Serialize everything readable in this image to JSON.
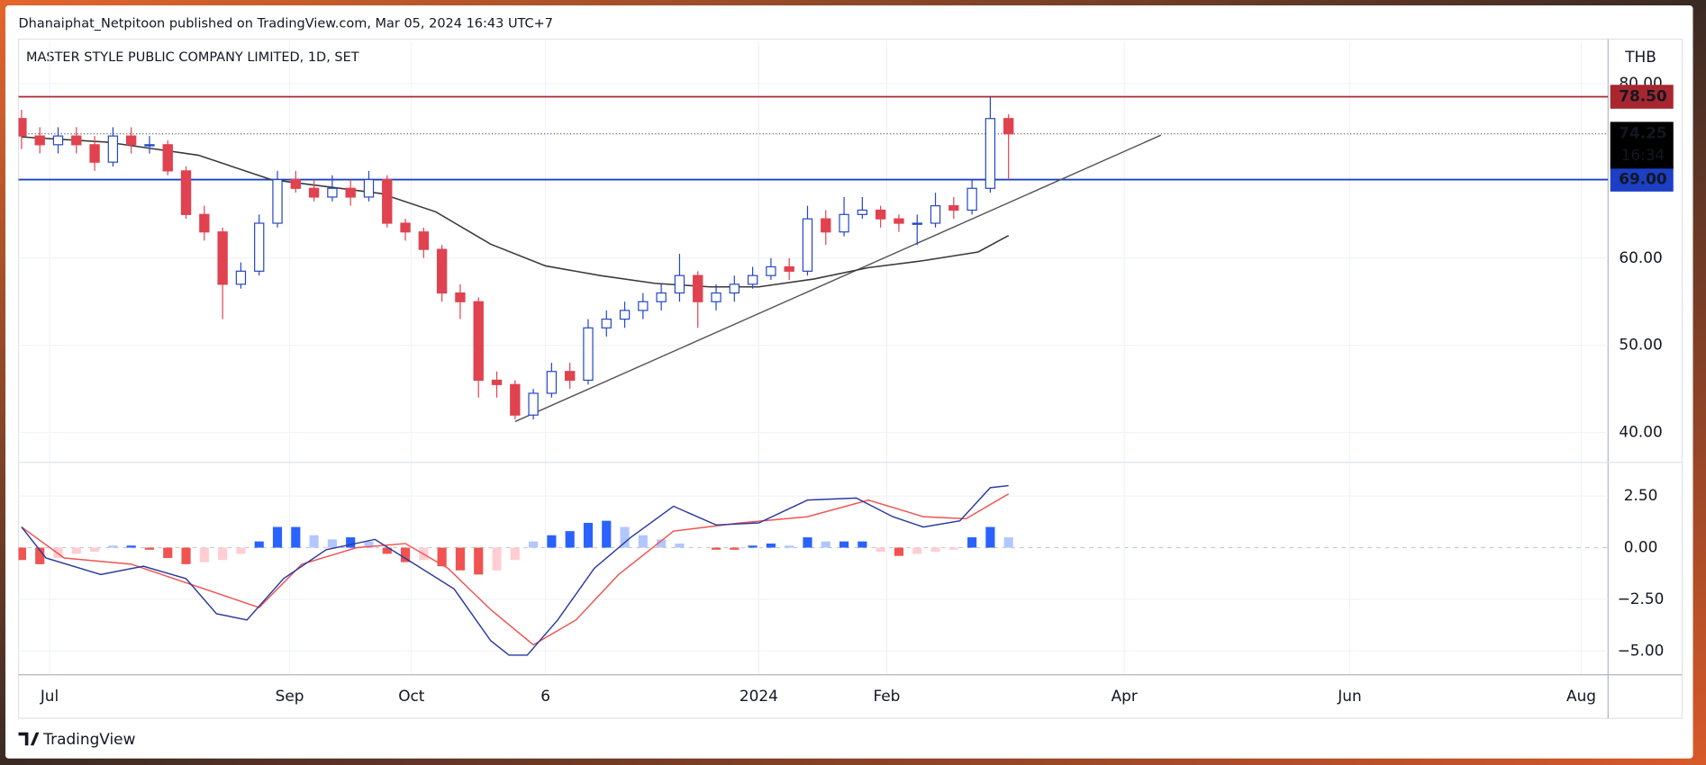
{
  "header": "Dhanaiphat_Netpitoon published on TradingView.com, Mar 05, 2024 16:43 UTC+7",
  "footer": "TradingView",
  "chart_data": {
    "type": "candlestick",
    "title": "MASTER STYLE PUBLIC COMPANY LIMITED, 1D, SET",
    "currency": "THB",
    "up_color": "#2447c7",
    "down_color": "#e0424f",
    "grid": true,
    "x": [
      0,
      3,
      6,
      9,
      12,
      15,
      18,
      21,
      24,
      27,
      30,
      33,
      36,
      39,
      42,
      45,
      48,
      51,
      54,
      57,
      60,
      63,
      66,
      69,
      72,
      75,
      78,
      81,
      84,
      87,
      90,
      93,
      96,
      99,
      102,
      105,
      108,
      111,
      114,
      117,
      120,
      123,
      126,
      129,
      132,
      135,
      138,
      141,
      144,
      147,
      150,
      153,
      156,
      159,
      162
    ],
    "candles": [
      [
        76,
        77,
        72.5,
        74
      ],
      [
        74,
        75,
        72,
        73
      ],
      [
        73,
        75,
        72,
        74
      ],
      [
        74,
        75,
        72,
        73
      ],
      [
        73,
        74,
        70,
        71
      ],
      [
        71,
        75,
        70.5,
        74
      ],
      [
        74,
        75,
        72,
        73
      ],
      [
        73,
        74,
        72,
        73
      ],
      [
        73,
        73.5,
        69.5,
        70
      ],
      [
        70,
        70.5,
        64.5,
        65
      ],
      [
        65,
        66,
        62,
        63
      ],
      [
        63,
        63.5,
        53,
        57
      ],
      [
        57,
        59.5,
        56.5,
        58.5
      ],
      [
        58.5,
        65,
        58,
        64
      ],
      [
        64,
        70,
        63.5,
        69
      ],
      [
        69,
        70,
        67.5,
        68
      ],
      [
        68,
        69,
        66.5,
        67
      ],
      [
        67,
        69.5,
        66.5,
        68
      ],
      [
        68,
        69,
        66,
        67
      ],
      [
        67,
        70,
        66.5,
        69
      ],
      [
        69,
        69.5,
        63.5,
        64
      ],
      [
        64,
        64.5,
        62,
        63
      ],
      [
        63,
        63.5,
        60,
        61
      ],
      [
        61,
        61.5,
        55,
        56
      ],
      [
        56,
        57,
        53,
        55
      ],
      [
        55,
        55.5,
        44,
        46
      ],
      [
        46,
        47,
        44,
        45.5
      ],
      [
        45.5,
        46,
        41.5,
        42
      ],
      [
        42,
        45,
        41.5,
        44.5
      ],
      [
        44.5,
        48,
        44,
        47
      ],
      [
        47,
        48,
        45,
        46
      ],
      [
        46,
        53,
        45.5,
        52
      ],
      [
        52,
        54,
        51,
        53
      ],
      [
        53,
        55,
        52,
        54
      ],
      [
        54,
        56,
        53,
        55
      ],
      [
        55,
        57,
        54,
        56
      ],
      [
        56,
        60.5,
        55,
        58
      ],
      [
        58,
        58.5,
        52,
        55
      ],
      [
        55,
        57,
        54,
        56
      ],
      [
        56,
        58,
        55,
        57
      ],
      [
        57,
        59,
        56.5,
        58
      ],
      [
        58,
        60,
        57.5,
        59
      ],
      [
        59,
        60,
        57.5,
        58.5
      ],
      [
        58.5,
        66,
        58,
        64.5
      ],
      [
        64.5,
        65.5,
        61.5,
        63
      ],
      [
        63,
        67,
        62.5,
        65
      ],
      [
        65,
        67,
        64.5,
        65.5
      ],
      [
        65.5,
        66,
        63.5,
        64.5
      ],
      [
        64.5,
        65,
        63,
        64
      ],
      [
        64,
        65,
        61.5,
        64
      ],
      [
        64,
        67.5,
        63.5,
        66
      ],
      [
        66,
        67,
        64.5,
        65.5
      ],
      [
        65.5,
        69,
        65,
        68
      ],
      [
        68,
        78.5,
        67.5,
        76
      ],
      [
        76,
        76.5,
        69,
        74.25
      ]
    ],
    "xlim": [
      -0.5,
      260.4
    ],
    "xticks": [
      {
        "value": 4.6,
        "label": "Jul"
      },
      {
        "value": 44,
        "label": "Sep"
      },
      {
        "value": 64,
        "label": "Oct"
      },
      {
        "value": 86,
        "label": "6"
      },
      {
        "value": 121,
        "label": "2024"
      },
      {
        "value": 142,
        "label": "Feb"
      },
      {
        "value": 181,
        "label": "Apr"
      },
      {
        "value": 218,
        "label": "Jun"
      },
      {
        "value": 256,
        "label": "Aug"
      }
    ],
    "ylim": [
      36.64,
      84.86
    ],
    "yticks": [
      {
        "value": 80,
        "label": "80.00"
      },
      {
        "value": 60,
        "label": "60.00"
      },
      {
        "value": 50,
        "label": "50.00"
      },
      {
        "value": 40,
        "label": "40.00"
      }
    ],
    "moving_average": {
      "color": "#3a3a3a",
      "x": [
        0,
        14,
        29,
        41,
        50,
        59,
        68,
        77,
        86,
        95,
        104,
        113,
        121,
        130,
        139,
        148,
        157,
        162
      ],
      "values": [
        73.9,
        73.3,
        71.8,
        69,
        68.2,
        67.4,
        65.3,
        61.6,
        59.1,
        58,
        57.1,
        56.7,
        56.7,
        57.6,
        58.9,
        59.7,
        60.7,
        62.6
      ]
    },
    "trendline": {
      "color": "#555555",
      "x": [
        81,
        187
      ],
      "values": [
        41.25,
        74.1
      ]
    },
    "levels": [
      {
        "value": 78.5,
        "label": "78.50",
        "color": "#a8262f"
      },
      {
        "value": 69,
        "label": "69.00",
        "color": "#1c3fc4"
      }
    ],
    "last": {
      "value": 74.25,
      "label": "74.25",
      "countdown": "16:34"
    },
    "macd": {
      "ylim": [
        -6.1,
        4.1
      ],
      "yticks": [
        {
          "value": 2.5,
          "label": "2.50"
        },
        {
          "value": 0,
          "label": "0.00"
        },
        {
          "value": -2.5,
          "label": "−2.50"
        },
        {
          "value": -5,
          "label": "−5.00"
        }
      ],
      "histogram": [
        -0.6,
        -0.8,
        -0.5,
        -0.3,
        -0.2,
        0.1,
        0.1,
        -0.1,
        -0.5,
        -0.8,
        -0.7,
        -0.6,
        -0.3,
        0.3,
        1.0,
        1.0,
        0.6,
        0.4,
        0.5,
        0.3,
        -0.3,
        -0.7,
        -0.6,
        -0.9,
        -1.1,
        -1.3,
        -1.1,
        -0.6,
        0.3,
        0.6,
        0.8,
        1.2,
        1.3,
        1.0,
        0.6,
        0.4,
        0.2,
        0.0,
        -0.1,
        -0.1,
        0.1,
        0.2,
        0.1,
        0.5,
        0.3,
        0.3,
        0.3,
        -0.2,
        -0.4,
        -0.3,
        -0.2,
        -0.1,
        0.5,
        1.0,
        0.5
      ],
      "macd_line": {
        "color": "#2a3a9e",
        "x": [
          0,
          4,
          13,
          20,
          27,
          32,
          37,
          43,
          50,
          58,
          64,
          71,
          77,
          80,
          83,
          88,
          94,
          100,
          107,
          114,
          121,
          129,
          137,
          143,
          148,
          154,
          159,
          162
        ],
        "values": [
          1.0,
          -0.5,
          -1.3,
          -0.9,
          -1.5,
          -3.2,
          -3.5,
          -1.5,
          -0.1,
          0.4,
          -0.7,
          -2.0,
          -4.5,
          -5.2,
          -5.2,
          -3.5,
          -1.0,
          0.5,
          2.0,
          1.1,
          1.2,
          2.3,
          2.4,
          1.5,
          1.0,
          1.3,
          2.9,
          3.0
        ]
      },
      "signal_line": {
        "color": "#f05350",
        "x": [
          0,
          7,
          18,
          32,
          39,
          46,
          55,
          63,
          70,
          77,
          84,
          91,
          98,
          107,
          118,
          129,
          139,
          148,
          155,
          162
        ],
        "values": [
          1.0,
          -0.5,
          -0.8,
          -2.2,
          -2.9,
          -0.8,
          0.0,
          0.2,
          -1.0,
          -3.0,
          -4.7,
          -3.5,
          -1.3,
          0.8,
          1.2,
          1.5,
          2.3,
          1.5,
          1.4,
          2.6
        ]
      }
    }
  }
}
